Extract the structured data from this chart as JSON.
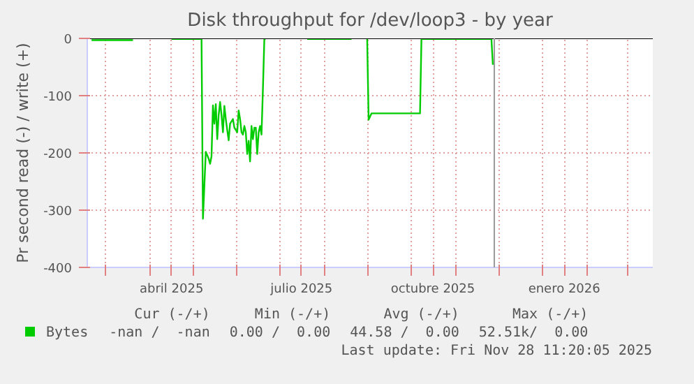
{
  "chart_data": {
    "type": "line",
    "title": "Disk throughput for /dev/loop3 - by year",
    "ylabel": "Pr second read (-) / write (+)",
    "x": [
      "2025-02-19",
      "2025-03-20",
      "2025-03-21",
      "2025-04-16",
      "2025-05-06",
      "2025-05-07",
      "2025-05-08",
      "2025-05-10",
      "2025-05-12",
      "2025-05-13",
      "2025-05-14",
      "2025-05-15",
      "2025-05-16",
      "2025-05-17",
      "2025-05-18",
      "2025-05-19",
      "2025-05-20",
      "2025-05-21",
      "2025-05-22",
      "2025-05-23",
      "2025-05-24",
      "2025-05-25",
      "2025-05-26",
      "2025-05-27",
      "2025-05-29",
      "2025-05-30",
      "2025-06-01",
      "2025-06-02",
      "2025-06-03",
      "2025-06-04",
      "2025-06-05",
      "2025-06-06",
      "2025-06-07",
      "2025-06-08",
      "2025-06-09",
      "2025-06-10",
      "2025-06-11",
      "2025-06-12",
      "2025-06-13",
      "2025-06-14",
      "2025-06-15",
      "2025-06-16",
      "2025-06-17",
      "2025-06-18",
      "2025-06-19",
      "2025-06-20",
      "2025-06-21",
      "2025-06-22",
      "2025-07-20",
      "2025-08-20",
      "2025-08-21",
      "2025-08-31",
      "2025-09-01",
      "2025-09-03",
      "2025-10-07",
      "2025-10-08",
      "2025-11-26",
      "2025-11-27"
    ],
    "series": [
      {
        "name": "Bytes",
        "color": "#00cc00",
        "values": [
          -3,
          -3,
          null,
          -1,
          -1,
          0,
          -315,
          -198,
          -210,
          -219,
          -206,
          -117,
          -149,
          -115,
          -176,
          -134,
          -111,
          -134,
          -164,
          -118,
          -141,
          -160,
          -178,
          -149,
          -141,
          -156,
          -164,
          -126,
          -141,
          -164,
          -168,
          -153,
          -164,
          -202,
          -179,
          -215,
          -153,
          -176,
          -156,
          -156,
          -202,
          -164,
          -153,
          -168,
          -88,
          0,
          -1,
          null,
          -1,
          -1,
          null,
          -1,
          -142,
          -131,
          -131,
          -1,
          -1,
          -46
        ]
      }
    ],
    "xlim": [
      "2025-02-16",
      "2026-03-19"
    ],
    "xticks": [
      {
        "value": "2025-03-01",
        "label": null
      },
      {
        "value": "2025-04-01",
        "label": null
      },
      {
        "value": "2025-04-16",
        "label": "abril 2025"
      },
      {
        "value": "2025-05-01",
        "label": null
      },
      {
        "value": "2025-06-01",
        "label": null
      },
      {
        "value": "2025-07-01",
        "label": null
      },
      {
        "value": "2025-07-16",
        "label": "julio 2025"
      },
      {
        "value": "2025-08-01",
        "label": null
      },
      {
        "value": "2025-09-01",
        "label": null
      },
      {
        "value": "2025-10-01",
        "label": null
      },
      {
        "value": "2025-10-16",
        "label": "octubre 2025"
      },
      {
        "value": "2025-11-01",
        "label": null
      },
      {
        "value": "2025-12-01",
        "label": null
      },
      {
        "value": "2026-01-01",
        "label": null
      },
      {
        "value": "2026-01-16",
        "label": "enero 2026"
      },
      {
        "value": "2026-02-01",
        "label": null
      },
      {
        "value": "2026-03-01",
        "label": null
      }
    ],
    "ylim": [
      -400,
      0
    ],
    "yticks": [
      -400,
      -300,
      -200,
      -100,
      0
    ],
    "grid": true,
    "legend": "bottom",
    "ref_lines": [
      {
        "axis": "x",
        "value": "2025-11-28",
        "label": null,
        "color": "#999999"
      }
    ],
    "annotations": [
      "Cur (-/+)",
      "Min (-/+)",
      "Avg (-/+)",
      "Max (-/+)",
      "-nan /  -nan",
      "0.00 /  0.00",
      "44.58 /  0.00",
      "52.51k/  0.00",
      "Last update: Fri Nov 28 11:20:05 2025"
    ]
  }
}
